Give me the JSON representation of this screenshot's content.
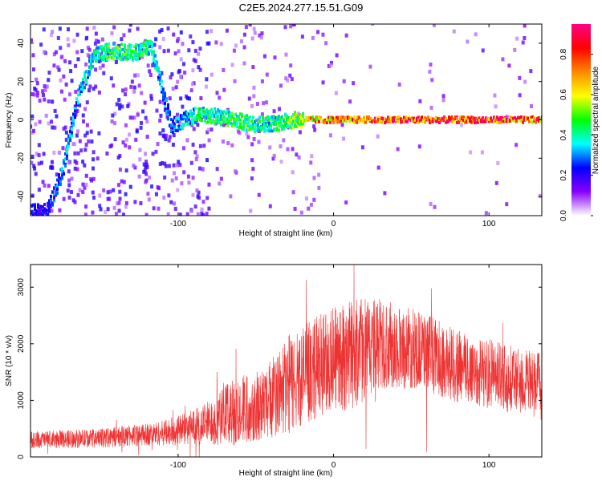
{
  "title": "C2E5.2024.277.15.51.G09",
  "chart_data": [
    {
      "type": "heatmap",
      "xlabel": "Height of straight line (km)",
      "ylabel": "Frequency (Hz)",
      "xlim": [
        -195,
        134
      ],
      "ylim": [
        -50,
        50
      ],
      "x_ticks": [
        -100,
        0,
        100
      ],
      "x_tick_labels": [
        "-100",
        "0",
        "100"
      ],
      "y_ticks": [
        -40,
        -20,
        0,
        20,
        40
      ],
      "y_tick_labels": [
        "-40",
        "-20",
        "0",
        "20",
        "40"
      ],
      "colorbar": {
        "label": "Normalized spectral amplitude",
        "range": [
          0,
          0.95
        ],
        "ticks": [
          0.0,
          0.2,
          0.4,
          0.6,
          0.8
        ],
        "tick_labels": [
          "0.0",
          "0.2",
          "0.4",
          "0.6",
          "0.8"
        ],
        "colormap": [
          "#ffffff",
          "#8800ff",
          "#0000ff",
          "#00ffff",
          "#00ff00",
          "#ffff00",
          "#ff8800",
          "#ff0000",
          "#ff0088"
        ]
      },
      "ridge": [
        {
          "x": -185,
          "f": -48,
          "a": 0.25
        },
        {
          "x": -175,
          "f": -27,
          "a": 0.35
        },
        {
          "x": -165,
          "f": 12,
          "a": 0.35
        },
        {
          "x": -155,
          "f": 33,
          "a": 0.45
        },
        {
          "x": -145,
          "f": 36,
          "a": 0.5
        },
        {
          "x": -130,
          "f": 35,
          "a": 0.5
        },
        {
          "x": -118,
          "f": 38,
          "a": 0.45
        },
        {
          "x": -105,
          "f": -3,
          "a": 0.3
        },
        {
          "x": -88,
          "f": 3,
          "a": 0.45
        },
        {
          "x": -70,
          "f": 1,
          "a": 0.5
        },
        {
          "x": -55,
          "f": -2,
          "a": 0.5
        },
        {
          "x": -40,
          "f": -2,
          "a": 0.45
        },
        {
          "x": -25,
          "f": 0,
          "a": 0.6
        },
        {
          "x": -10,
          "f": 0,
          "a": 0.8
        },
        {
          "x": 20,
          "f": 0,
          "a": 0.9
        },
        {
          "x": 60,
          "f": 0,
          "a": 0.9
        },
        {
          "x": 100,
          "f": 0,
          "a": 0.9
        },
        {
          "x": 134,
          "f": 0,
          "a": 0.85
        }
      ]
    },
    {
      "type": "line",
      "xlabel": "Height of straight line (km)",
      "ylabel": "SNR (10 * v/v)",
      "xlim": [
        -195,
        134
      ],
      "ylim": [
        0,
        3400
      ],
      "x_ticks": [
        -100,
        0,
        100
      ],
      "x_tick_labels": [
        "-100",
        "0",
        "100"
      ],
      "y_ticks": [
        0,
        1000,
        2000,
        3000
      ],
      "y_tick_labels": [
        "0",
        "1000",
        "2000",
        "3000"
      ],
      "color": "#ee3333",
      "envelope": [
        {
          "x": -195,
          "mean": 300,
          "spread": 150
        },
        {
          "x": -150,
          "mean": 330,
          "spread": 170
        },
        {
          "x": -110,
          "mean": 420,
          "spread": 220
        },
        {
          "x": -85,
          "mean": 550,
          "spread": 350
        },
        {
          "x": -65,
          "mean": 800,
          "spread": 600
        },
        {
          "x": -45,
          "mean": 950,
          "spread": 650
        },
        {
          "x": -28,
          "mean": 1300,
          "spread": 900
        },
        {
          "x": -10,
          "mean": 1600,
          "spread": 900
        },
        {
          "x": 10,
          "mean": 1800,
          "spread": 1000
        },
        {
          "x": 30,
          "mean": 2000,
          "spread": 800
        },
        {
          "x": 55,
          "mean": 1900,
          "spread": 700
        },
        {
          "x": 80,
          "mean": 1600,
          "spread": 650
        },
        {
          "x": 110,
          "mean": 1400,
          "spread": 600
        },
        {
          "x": 134,
          "mean": 1250,
          "spread": 600
        }
      ]
    }
  ]
}
